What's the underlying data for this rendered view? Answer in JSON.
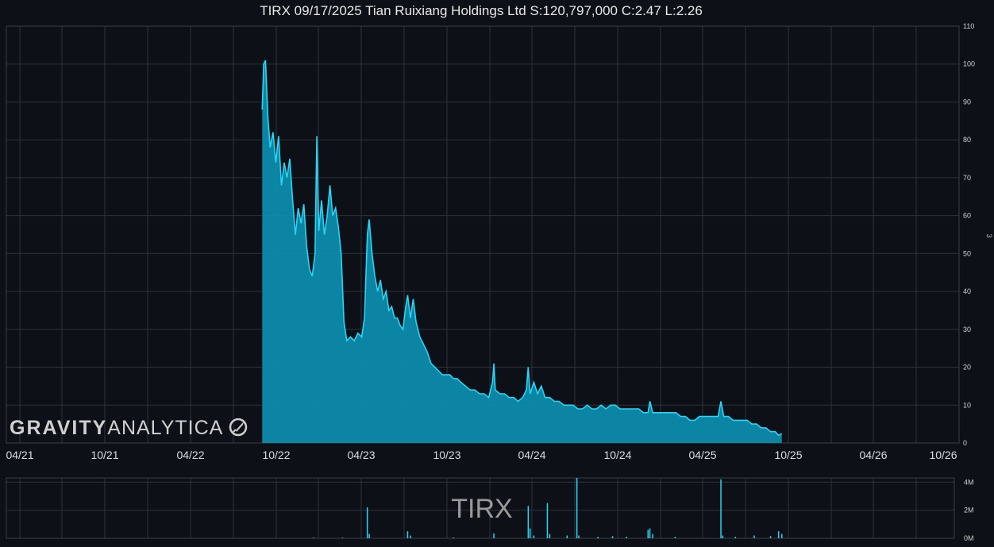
{
  "title": "TIRX 09/17/2025 Tian Ruixiang Holdings Ltd S:120,797,000 C:2.47 L:2.26",
  "ticker": "TIRX",
  "logo": {
    "word1": "GRAVITY",
    "word2": "ANALYTICA",
    "icon": "rocket-icon"
  },
  "side_mark": "3",
  "colors": {
    "background": "#0d1117",
    "line": "#2ad4f6",
    "fill": "#0b8fb0",
    "grid": "#2e3238",
    "volume": "#2ad4f6"
  },
  "chart_data": [
    {
      "type": "area",
      "title": "TIRX 09/17/2025 Tian Ruixiang Holdings Ltd S:120,797,000 C:2.47 L:2.26",
      "xlabel": "",
      "ylabel": "",
      "x_ticks": [
        "04/21",
        "10/21",
        "04/22",
        "10/22",
        "04/23",
        "10/23",
        "04/24",
        "10/24",
        "04/25",
        "10/25",
        "04/26",
        "10/26"
      ],
      "y_ticks": [
        0,
        10,
        20,
        30,
        40,
        50,
        60,
        70,
        80,
        90,
        100,
        110
      ],
      "ylim": [
        0,
        110
      ],
      "grid": true,
      "series": [
        {
          "name": "",
          "points": [
            [
              "2022-09-01",
              88
            ],
            [
              "2022-09-04",
              100
            ],
            [
              "2022-09-08",
              101
            ],
            [
              "2022-09-13",
              86
            ],
            [
              "2022-09-18",
              78
            ],
            [
              "2022-09-24",
              82
            ],
            [
              "2022-09-30",
              74
            ],
            [
              "2022-10-06",
              81
            ],
            [
              "2022-10-12",
              68
            ],
            [
              "2022-10-18",
              74
            ],
            [
              "2022-10-24",
              70
            ],
            [
              "2022-10-30",
              75
            ],
            [
              "2022-11-05",
              64
            ],
            [
              "2022-11-11",
              55
            ],
            [
              "2022-11-17",
              62
            ],
            [
              "2022-11-23",
              58
            ],
            [
              "2022-11-29",
              63
            ],
            [
              "2022-12-05",
              52
            ],
            [
              "2022-12-11",
              46
            ],
            [
              "2022-12-17",
              44
            ],
            [
              "2022-12-23",
              50
            ],
            [
              "2022-12-27",
              81
            ],
            [
              "2022-12-31",
              56
            ],
            [
              "2023-01-06",
              64
            ],
            [
              "2023-01-12",
              55
            ],
            [
              "2023-01-18",
              60
            ],
            [
              "2023-01-24",
              68
            ],
            [
              "2023-01-30",
              60
            ],
            [
              "2023-02-05",
              62
            ],
            [
              "2023-02-11",
              57
            ],
            [
              "2023-02-17",
              50
            ],
            [
              "2023-02-23",
              32
            ],
            [
              "2023-03-01",
              27
            ],
            [
              "2023-03-09",
              28
            ],
            [
              "2023-03-17",
              27
            ],
            [
              "2023-03-25",
              29
            ],
            [
              "2023-04-02",
              28
            ],
            [
              "2023-04-08",
              33
            ],
            [
              "2023-04-14",
              55
            ],
            [
              "2023-04-18",
              59
            ],
            [
              "2023-04-24",
              50
            ],
            [
              "2023-04-30",
              44
            ],
            [
              "2023-05-06",
              40
            ],
            [
              "2023-05-12",
              43
            ],
            [
              "2023-05-18",
              38
            ],
            [
              "2023-05-24",
              40
            ],
            [
              "2023-05-30",
              35
            ],
            [
              "2023-06-05",
              36
            ],
            [
              "2023-06-11",
              33
            ],
            [
              "2023-06-17",
              33
            ],
            [
              "2023-06-23",
              31
            ],
            [
              "2023-06-29",
              30
            ],
            [
              "2023-07-05",
              36
            ],
            [
              "2023-07-09",
              39
            ],
            [
              "2023-07-15",
              33
            ],
            [
              "2023-07-21",
              38
            ],
            [
              "2023-07-27",
              32
            ],
            [
              "2023-08-04",
              28
            ],
            [
              "2023-08-12",
              26
            ],
            [
              "2023-08-20",
              24
            ],
            [
              "2023-08-28",
              21
            ],
            [
              "2023-09-05",
              20
            ],
            [
              "2023-09-13",
              19
            ],
            [
              "2023-09-21",
              18
            ],
            [
              "2023-09-29",
              18
            ],
            [
              "2023-10-07",
              18
            ],
            [
              "2023-10-15",
              17
            ],
            [
              "2023-10-23",
              17
            ],
            [
              "2023-10-31",
              16
            ],
            [
              "2023-11-10",
              15
            ],
            [
              "2023-11-20",
              14
            ],
            [
              "2023-11-30",
              14
            ],
            [
              "2023-12-10",
              13
            ],
            [
              "2023-12-20",
              13
            ],
            [
              "2023-12-30",
              12
            ],
            [
              "2024-01-07",
              16
            ],
            [
              "2024-01-10",
              21
            ],
            [
              "2024-01-13",
              14
            ],
            [
              "2024-01-23",
              13
            ],
            [
              "2024-02-02",
              13
            ],
            [
              "2024-02-12",
              12
            ],
            [
              "2024-02-22",
              12
            ],
            [
              "2024-03-02",
              11
            ],
            [
              "2024-03-12",
              12
            ],
            [
              "2024-03-20",
              14
            ],
            [
              "2024-03-24",
              20
            ],
            [
              "2024-03-28",
              13
            ],
            [
              "2024-04-05",
              16
            ],
            [
              "2024-04-13",
              13
            ],
            [
              "2024-04-21",
              15
            ],
            [
              "2024-04-29",
              12
            ],
            [
              "2024-05-09",
              12
            ],
            [
              "2024-05-19",
              11
            ],
            [
              "2024-05-29",
              11
            ],
            [
              "2024-06-08",
              10
            ],
            [
              "2024-06-18",
              10
            ],
            [
              "2024-06-28",
              10
            ],
            [
              "2024-07-08",
              9
            ],
            [
              "2024-07-18",
              9
            ],
            [
              "2024-07-28",
              10
            ],
            [
              "2024-08-07",
              9
            ],
            [
              "2024-08-17",
              9
            ],
            [
              "2024-08-27",
              10
            ],
            [
              "2024-09-06",
              9
            ],
            [
              "2024-09-16",
              10
            ],
            [
              "2024-09-26",
              10
            ],
            [
              "2024-10-06",
              9
            ],
            [
              "2024-10-16",
              9
            ],
            [
              "2024-10-26",
              9
            ],
            [
              "2024-11-05",
              9
            ],
            [
              "2024-11-15",
              9
            ],
            [
              "2024-11-25",
              8
            ],
            [
              "2024-12-05",
              8
            ],
            [
              "2024-12-09",
              11
            ],
            [
              "2024-12-15",
              8
            ],
            [
              "2024-12-25",
              8
            ],
            [
              "2025-01-04",
              8
            ],
            [
              "2025-01-14",
              8
            ],
            [
              "2025-01-24",
              8
            ],
            [
              "2025-02-03",
              8
            ],
            [
              "2025-02-13",
              7
            ],
            [
              "2025-02-23",
              7
            ],
            [
              "2025-03-05",
              6
            ],
            [
              "2025-03-15",
              6
            ],
            [
              "2025-03-25",
              7
            ],
            [
              "2025-04-04",
              7
            ],
            [
              "2025-04-14",
              7
            ],
            [
              "2025-04-24",
              7
            ],
            [
              "2025-05-04",
              7
            ],
            [
              "2025-05-10",
              11
            ],
            [
              "2025-05-16",
              7
            ],
            [
              "2025-05-26",
              7
            ],
            [
              "2025-06-05",
              6
            ],
            [
              "2025-06-15",
              6
            ],
            [
              "2025-06-25",
              6
            ],
            [
              "2025-07-05",
              6
            ],
            [
              "2025-07-15",
              5
            ],
            [
              "2025-07-25",
              5
            ],
            [
              "2025-08-04",
              4
            ],
            [
              "2025-08-14",
              4
            ],
            [
              "2025-08-24",
              3
            ],
            [
              "2025-09-03",
              3
            ],
            [
              "2025-09-10",
              2
            ],
            [
              "2025-09-17",
              2.47
            ]
          ]
        }
      ]
    },
    {
      "type": "bar",
      "title": "TIRX",
      "xlabel": "",
      "ylabel": "",
      "y_ticks": [
        "0M",
        "2M",
        "4M"
      ],
      "ylim": [
        0,
        4.3
      ],
      "grid": true,
      "series": [
        {
          "name": "",
          "points": [
            [
              "2022-12-20",
              0.05
            ],
            [
              "2023-02-20",
              0.04
            ],
            [
              "2023-04-14",
              2.2
            ],
            [
              "2023-04-18",
              0.3
            ],
            [
              "2023-07-09",
              0.5
            ],
            [
              "2023-07-15",
              0.2
            ],
            [
              "2023-10-15",
              0.05
            ],
            [
              "2024-01-10",
              0.35
            ],
            [
              "2024-03-24",
              2.3
            ],
            [
              "2024-03-28",
              0.7
            ],
            [
              "2024-04-05",
              0.2
            ],
            [
              "2024-05-04",
              2.5
            ],
            [
              "2024-05-09",
              0.3
            ],
            [
              "2024-06-15",
              0.2
            ],
            [
              "2024-07-06",
              4.4
            ],
            [
              "2024-07-10",
              0.2
            ],
            [
              "2024-08-20",
              0.1
            ],
            [
              "2024-09-20",
              0.15
            ],
            [
              "2024-10-20",
              0.1
            ],
            [
              "2024-12-05",
              0.6
            ],
            [
              "2024-12-09",
              0.7
            ],
            [
              "2024-12-15",
              0.3
            ],
            [
              "2025-02-01",
              0.1
            ],
            [
              "2025-05-10",
              4.2
            ],
            [
              "2025-05-14",
              0.2
            ],
            [
              "2025-06-10",
              0.1
            ],
            [
              "2025-07-20",
              0.2
            ],
            [
              "2025-08-24",
              0.15
            ],
            [
              "2025-09-10",
              0.5
            ],
            [
              "2025-09-17",
              0.3
            ]
          ]
        }
      ]
    }
  ]
}
